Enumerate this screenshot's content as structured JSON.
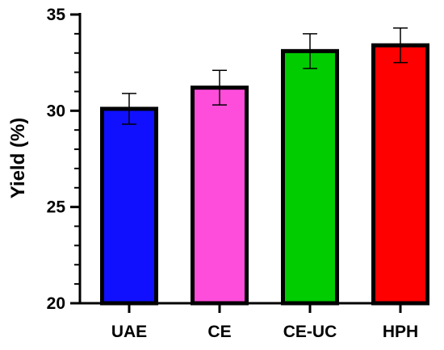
{
  "chart_data": {
    "type": "bar",
    "title": "",
    "xlabel": "",
    "ylabel": "Yield (%)",
    "ylim": [
      20,
      35
    ],
    "yticks": [
      20,
      25,
      30,
      35
    ],
    "y_minor_step": 1,
    "grid": false,
    "categories": [
      "UAE",
      "CE",
      "CE-UC",
      "HPH"
    ],
    "values": [
      30.1,
      31.2,
      33.1,
      33.4
    ],
    "errors": [
      0.8,
      0.9,
      0.9,
      0.9
    ],
    "colors": [
      "#1010ff",
      "#ff4ddb",
      "#00cc00",
      "#ff0000"
    ]
  }
}
